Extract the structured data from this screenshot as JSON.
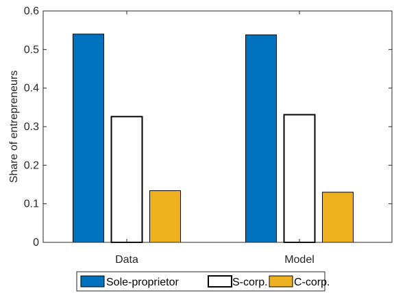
{
  "chart_data": {
    "type": "bar",
    "title": "",
    "xlabel": "",
    "ylabel": "Share of entrepreneurs",
    "categories": [
      "Data",
      "Model"
    ],
    "ylim": [
      0,
      0.6
    ],
    "yticks": [
      0,
      0.1,
      0.2,
      0.3,
      0.4,
      0.5,
      0.6
    ],
    "grid": false,
    "legend_position": "bottom-outside",
    "series": [
      {
        "name": "Sole-proprietor",
        "values": [
          0.54,
          0.538
        ],
        "fill": "#0072BD",
        "stroke": "#000000"
      },
      {
        "name": "S-corp.",
        "values": [
          0.326,
          0.331
        ],
        "fill": "#FFFFFF",
        "stroke": "#000000"
      },
      {
        "name": "C-corp.",
        "values": [
          0.134,
          0.13
        ],
        "fill": "#EDB120",
        "stroke": "#000000"
      }
    ]
  }
}
